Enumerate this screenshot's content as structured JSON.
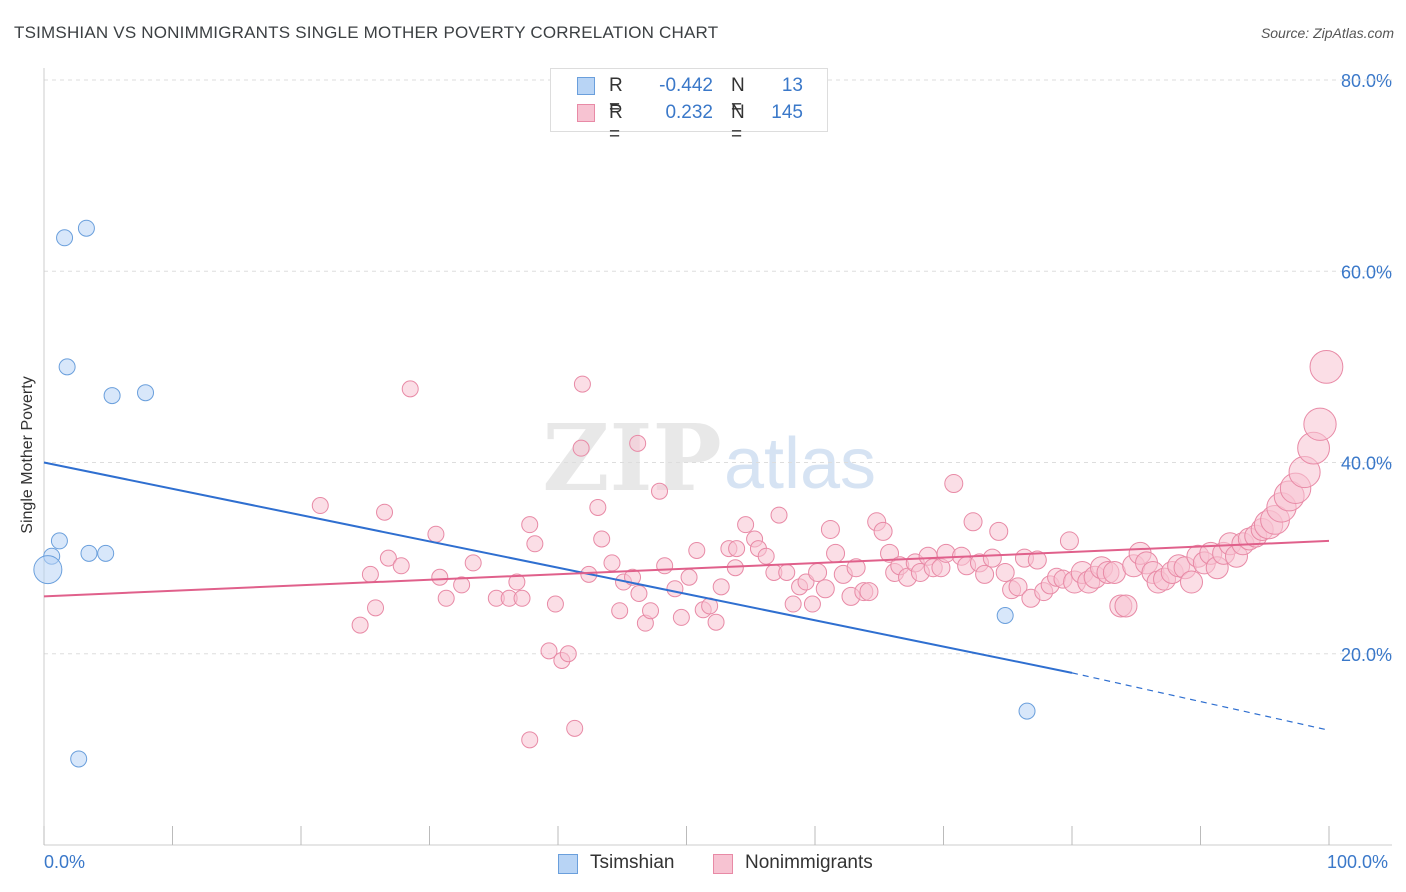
{
  "title": "TSIMSHIAN VS NONIMMIGRANTS SINGLE MOTHER POVERTY CORRELATION CHART",
  "source": "Source: ZipAtlas.com",
  "legend": {
    "rows": [
      {
        "r_label": "R =",
        "r_value": "-0.442",
        "n_label": "N =",
        "n_value": "13"
      },
      {
        "r_label": "R =",
        "r_value": "0.232",
        "n_label": "N =",
        "n_value": "145"
      }
    ]
  },
  "bottom_legend": [
    "Tsimshian",
    "Nonimmigrants"
  ],
  "chart_data": {
    "type": "scatter",
    "title": "TSIMSHIAN VS NONIMMIGRANTS SINGLE MOTHER POVERTY CORRELATION CHART",
    "xlabel": "",
    "ylabel": "Single Mother Poverty",
    "xlim": [
      0,
      100
    ],
    "ylim": [
      0,
      80
    ],
    "x_tick_labels": [
      "0.0%",
      "100.0%"
    ],
    "y_tick_labels": [
      "20.0%",
      "40.0%",
      "60.0%",
      "80.0%"
    ],
    "y_ticks": [
      20,
      40,
      60,
      80
    ],
    "grid": true,
    "legend_position": "top-center",
    "colors": {
      "tsimshian_fill": "#b8d4f5",
      "tsimshian_stroke": "#6a9fdc",
      "tsimshian_line": "#2f6fd0",
      "nonimm_fill": "#f7c3d2",
      "nonimm_stroke": "#e88aa6",
      "nonimm_line": "#e0608b",
      "axis_label": "#3a78c9"
    },
    "series": [
      {
        "name": "Tsimshian",
        "r": -0.442,
        "n": 13,
        "trend": {
          "x0": 0,
          "y0": 40,
          "x1": 80,
          "y1": 18,
          "dash_to_x": 100,
          "dash_to_y": 12
        },
        "points": [
          {
            "x": 1.6,
            "y": 63.5
          },
          {
            "x": 3.3,
            "y": 64.5
          },
          {
            "x": 1.8,
            "y": 50
          },
          {
            "x": 5.3,
            "y": 47
          },
          {
            "x": 7.9,
            "y": 47.3
          },
          {
            "x": 1.2,
            "y": 31.8
          },
          {
            "x": 0.6,
            "y": 30.2
          },
          {
            "x": 3.5,
            "y": 30.5
          },
          {
            "x": 4.8,
            "y": 30.5
          },
          {
            "x": 0.3,
            "y": 28.8
          },
          {
            "x": 2.7,
            "y": 9
          },
          {
            "x": 74.8,
            "y": 24
          },
          {
            "x": 76.5,
            "y": 14
          }
        ]
      },
      {
        "name": "Nonimmigrants",
        "r": 0.232,
        "n": 145,
        "trend": {
          "x0": 0,
          "y0": 26,
          "x1": 100,
          "y1": 31.8
        },
        "points": [
          {
            "x": 21.5,
            "y": 35.5
          },
          {
            "x": 26.5,
            "y": 34.8
          },
          {
            "x": 26.8,
            "y": 30
          },
          {
            "x": 25.4,
            "y": 28.3
          },
          {
            "x": 27.8,
            "y": 29.2
          },
          {
            "x": 28.5,
            "y": 47.7
          },
          {
            "x": 30.5,
            "y": 32.5
          },
          {
            "x": 30.8,
            "y": 28
          },
          {
            "x": 31.3,
            "y": 25.8
          },
          {
            "x": 32.5,
            "y": 27.2
          },
          {
            "x": 33.4,
            "y": 29.5
          },
          {
            "x": 25.8,
            "y": 24.8
          },
          {
            "x": 24.6,
            "y": 23
          },
          {
            "x": 35.2,
            "y": 25.8
          },
          {
            "x": 36.2,
            "y": 25.8
          },
          {
            "x": 36.8,
            "y": 27.5
          },
          {
            "x": 37.2,
            "y": 25.8
          },
          {
            "x": 37.8,
            "y": 33.5
          },
          {
            "x": 38.2,
            "y": 31.5
          },
          {
            "x": 39.8,
            "y": 25.2
          },
          {
            "x": 39.3,
            "y": 20.3
          },
          {
            "x": 40.3,
            "y": 19.3
          },
          {
            "x": 40.8,
            "y": 20
          },
          {
            "x": 41.3,
            "y": 12.2
          },
          {
            "x": 37.8,
            "y": 11
          },
          {
            "x": 41.8,
            "y": 41.5
          },
          {
            "x": 41.9,
            "y": 48.2
          },
          {
            "x": 42.4,
            "y": 28.3
          },
          {
            "x": 43.1,
            "y": 35.3
          },
          {
            "x": 43.4,
            "y": 32
          },
          {
            "x": 44.2,
            "y": 29.5
          },
          {
            "x": 44.8,
            "y": 24.5
          },
          {
            "x": 45.1,
            "y": 27.5
          },
          {
            "x": 45.8,
            "y": 28
          },
          {
            "x": 46.2,
            "y": 42
          },
          {
            "x": 46.3,
            "y": 26.3
          },
          {
            "x": 46.8,
            "y": 23.2
          },
          {
            "x": 47.2,
            "y": 24.5
          },
          {
            "x": 47.9,
            "y": 37
          },
          {
            "x": 48.3,
            "y": 29.2
          },
          {
            "x": 49.1,
            "y": 26.8
          },
          {
            "x": 49.6,
            "y": 23.8
          },
          {
            "x": 50.2,
            "y": 28
          },
          {
            "x": 50.8,
            "y": 30.8
          },
          {
            "x": 51.3,
            "y": 24.6
          },
          {
            "x": 51.8,
            "y": 25
          },
          {
            "x": 52.3,
            "y": 23.3
          },
          {
            "x": 52.7,
            "y": 27
          },
          {
            "x": 53.3,
            "y": 31
          },
          {
            "x": 53.8,
            "y": 29
          },
          {
            "x": 53.9,
            "y": 31
          },
          {
            "x": 54.6,
            "y": 33.5
          },
          {
            "x": 55.3,
            "y": 32
          },
          {
            "x": 55.6,
            "y": 31
          },
          {
            "x": 56.2,
            "y": 30.2
          },
          {
            "x": 56.8,
            "y": 28.5
          },
          {
            "x": 57.2,
            "y": 34.5
          },
          {
            "x": 57.8,
            "y": 28.5
          },
          {
            "x": 58.3,
            "y": 25.2
          },
          {
            "x": 58.8,
            "y": 27
          },
          {
            "x": 59.3,
            "y": 27.5
          },
          {
            "x": 59.8,
            "y": 25.2
          },
          {
            "x": 60.2,
            "y": 28.5
          },
          {
            "x": 60.8,
            "y": 26.8
          },
          {
            "x": 61.2,
            "y": 33
          },
          {
            "x": 61.6,
            "y": 30.5
          },
          {
            "x": 62.2,
            "y": 28.3
          },
          {
            "x": 62.8,
            "y": 26
          },
          {
            "x": 63.2,
            "y": 29
          },
          {
            "x": 63.8,
            "y": 26.5
          },
          {
            "x": 64.2,
            "y": 26.5
          },
          {
            "x": 64.8,
            "y": 33.8
          },
          {
            "x": 65.3,
            "y": 32.8
          },
          {
            "x": 65.8,
            "y": 30.5
          },
          {
            "x": 66.2,
            "y": 28.5
          },
          {
            "x": 66.6,
            "y": 29.2
          },
          {
            "x": 67.2,
            "y": 28
          },
          {
            "x": 67.8,
            "y": 29.5
          },
          {
            "x": 68.2,
            "y": 28.5
          },
          {
            "x": 68.8,
            "y": 30.2
          },
          {
            "x": 69.2,
            "y": 29
          },
          {
            "x": 69.8,
            "y": 29
          },
          {
            "x": 70.2,
            "y": 30.5
          },
          {
            "x": 70.8,
            "y": 37.8
          },
          {
            "x": 71.4,
            "y": 30.2
          },
          {
            "x": 71.8,
            "y": 29.2
          },
          {
            "x": 72.3,
            "y": 33.8
          },
          {
            "x": 72.8,
            "y": 29.5
          },
          {
            "x": 73.2,
            "y": 28.3
          },
          {
            "x": 73.8,
            "y": 30
          },
          {
            "x": 74.3,
            "y": 32.8
          },
          {
            "x": 74.8,
            "y": 28.5
          },
          {
            "x": 75.3,
            "y": 26.7
          },
          {
            "x": 75.8,
            "y": 27
          },
          {
            "x": 76.3,
            "y": 30
          },
          {
            "x": 76.8,
            "y": 25.8
          },
          {
            "x": 77.3,
            "y": 29.8
          },
          {
            "x": 77.8,
            "y": 26.5
          },
          {
            "x": 78.3,
            "y": 27.2
          },
          {
            "x": 78.8,
            "y": 28
          },
          {
            "x": 79.3,
            "y": 27.8
          },
          {
            "x": 79.8,
            "y": 31.8
          },
          {
            "x": 80.2,
            "y": 27.5
          },
          {
            "x": 80.8,
            "y": 28.5
          },
          {
            "x": 81.3,
            "y": 27.5
          },
          {
            "x": 81.8,
            "y": 28
          },
          {
            "x": 82.3,
            "y": 29
          },
          {
            "x": 82.8,
            "y": 28.5
          },
          {
            "x": 83.3,
            "y": 28.5
          },
          {
            "x": 83.8,
            "y": 25
          },
          {
            "x": 84.2,
            "y": 25
          },
          {
            "x": 84.8,
            "y": 29.2
          },
          {
            "x": 85.3,
            "y": 30.5
          },
          {
            "x": 85.8,
            "y": 29.5
          },
          {
            "x": 86.3,
            "y": 28.5
          },
          {
            "x": 86.7,
            "y": 27.5
          },
          {
            "x": 87.2,
            "y": 27.8
          },
          {
            "x": 87.8,
            "y": 28.5
          },
          {
            "x": 88.3,
            "y": 29.2
          },
          {
            "x": 88.8,
            "y": 29
          },
          {
            "x": 89.3,
            "y": 27.5
          },
          {
            "x": 89.8,
            "y": 30.2
          },
          {
            "x": 90.3,
            "y": 29.5
          },
          {
            "x": 90.8,
            "y": 30.5
          },
          {
            "x": 91.3,
            "y": 29
          },
          {
            "x": 91.8,
            "y": 30.5
          },
          {
            "x": 92.3,
            "y": 31.5
          },
          {
            "x": 92.8,
            "y": 30.2
          },
          {
            "x": 93.3,
            "y": 31.5
          },
          {
            "x": 93.8,
            "y": 32
          },
          {
            "x": 94.3,
            "y": 32.3
          },
          {
            "x": 94.8,
            "y": 33
          },
          {
            "x": 95.3,
            "y": 33.5
          },
          {
            "x": 95.8,
            "y": 34
          },
          {
            "x": 96.3,
            "y": 35.3
          },
          {
            "x": 96.9,
            "y": 36.5
          },
          {
            "x": 97.4,
            "y": 37.3
          },
          {
            "x": 98.1,
            "y": 39
          },
          {
            "x": 98.8,
            "y": 41.5
          },
          {
            "x": 99.3,
            "y": 44
          },
          {
            "x": 99.8,
            "y": 50
          }
        ]
      }
    ]
  }
}
